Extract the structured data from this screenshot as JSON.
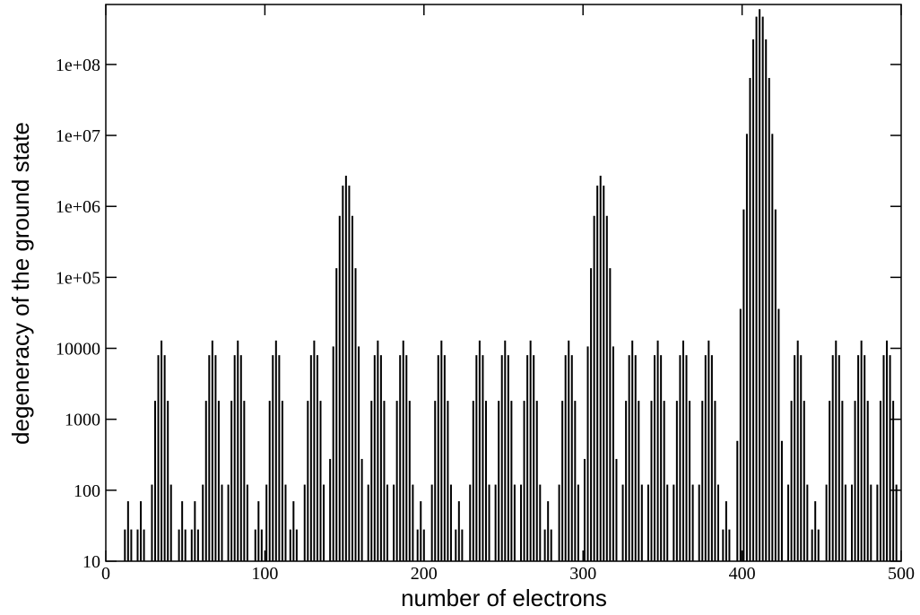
{
  "chart_data": {
    "type": "bar",
    "x_label": "number of electrons",
    "y_label": "degeneracy of the ground state",
    "color": "#000000",
    "log_y": true,
    "grid": false,
    "xlim": [
      0,
      500
    ],
    "xticks": [
      0,
      100,
      200,
      300,
      400,
      500
    ],
    "ylim": [
      10,
      700000000
    ],
    "yticks": [
      10,
      100,
      1000,
      10000,
      {
        "value": 100000,
        "label": "1e+05"
      },
      {
        "value": 1000000,
        "label": "1e+06"
      },
      {
        "value": 10000000,
        "label": "1e+07"
      },
      {
        "value": 100000000,
        "label": "1e+08"
      }
    ],
    "x": [
      12,
      14,
      16,
      20,
      22,
      24,
      29,
      31,
      33,
      35,
      37,
      39,
      41,
      46,
      48,
      50,
      54,
      56,
      58,
      61,
      63,
      65,
      67,
      69,
      71,
      73,
      77,
      79,
      81,
      83,
      85,
      87,
      89,
      94,
      96,
      98,
      101,
      103,
      105,
      107,
      109,
      111,
      113,
      116,
      118,
      120,
      125,
      127,
      129,
      131,
      133,
      135,
      137,
      141,
      143,
      145,
      147,
      149,
      151,
      153,
      155,
      157,
      159,
      161,
      165,
      167,
      169,
      171,
      173,
      175,
      177,
      181,
      183,
      185,
      187,
      189,
      191,
      193,
      196,
      198,
      200,
      205,
      207,
      209,
      211,
      213,
      215,
      217,
      220,
      222,
      224,
      229,
      231,
      233,
      235,
      237,
      239,
      241,
      245,
      247,
      249,
      251,
      253,
      255,
      257,
      261,
      263,
      265,
      267,
      269,
      271,
      273,
      276,
      278,
      280,
      285,
      287,
      289,
      291,
      293,
      295,
      297,
      301,
      303,
      305,
      307,
      309,
      311,
      313,
      315,
      317,
      319,
      321,
      325,
      327,
      329,
      331,
      333,
      335,
      337,
      341,
      343,
      345,
      347,
      349,
      351,
      353,
      357,
      359,
      361,
      363,
      365,
      367,
      369,
      373,
      375,
      377,
      379,
      381,
      383,
      385,
      388,
      390,
      392,
      397,
      399,
      401,
      403,
      405,
      407,
      409,
      411,
      413,
      415,
      417,
      419,
      421,
      423,
      425,
      429,
      431,
      433,
      435,
      437,
      439,
      441,
      444,
      446,
      448,
      453,
      455,
      457,
      459,
      461,
      463,
      465,
      469,
      471,
      473,
      475,
      477,
      479,
      481,
      485,
      487,
      489,
      491,
      493,
      495,
      497
    ],
    "values": [
      28,
      70,
      28,
      28,
      70,
      28,
      120,
      1820,
      8008,
      12870,
      8008,
      1820,
      120,
      28,
      70,
      28,
      28,
      70,
      28,
      120,
      1820,
      8008,
      12870,
      8008,
      1820,
      120,
      120,
      1820,
      8008,
      12870,
      8008,
      1820,
      120,
      28,
      70,
      28,
      120,
      1820,
      8008,
      12870,
      8008,
      1820,
      120,
      28,
      70,
      28,
      120,
      1820,
      8008,
      12870,
      8008,
      1820,
      120,
      276,
      10626,
      134596,
      735471,
      1961256,
      2704156,
      1961256,
      735471,
      134596,
      10626,
      276,
      120,
      1820,
      8008,
      12870,
      8008,
      1820,
      120,
      120,
      1820,
      8008,
      12870,
      8008,
      1820,
      120,
      28,
      70,
      28,
      120,
      1820,
      8008,
      12870,
      8008,
      1820,
      120,
      28,
      70,
      28,
      120,
      1820,
      8008,
      12870,
      8008,
      1820,
      120,
      120,
      1820,
      8008,
      12870,
      8008,
      1820,
      120,
      120,
      1820,
      8008,
      12870,
      8008,
      1820,
      120,
      28,
      70,
      28,
      120,
      1820,
      8008,
      12870,
      8008,
      1820,
      120,
      276,
      10626,
      134596,
      735471,
      1961256,
      2704156,
      1961256,
      735471,
      134596,
      10626,
      276,
      120,
      1820,
      8008,
      12870,
      8008,
      1820,
      120,
      120,
      1820,
      8008,
      12870,
      8008,
      1820,
      120,
      120,
      1820,
      8008,
      12870,
      8008,
      1820,
      120,
      120,
      1820,
      8008,
      12870,
      8008,
      1820,
      120,
      28,
      70,
      28,
      496,
      35960,
      906192,
      10518300,
      64512240,
      225792840,
      471435600,
      601080390,
      471435600,
      225792840,
      64512240,
      10518300,
      906192,
      35960,
      496,
      120,
      1820,
      8008,
      12870,
      8008,
      1820,
      120,
      28,
      70,
      28,
      120,
      1820,
      8008,
      12870,
      8008,
      1820,
      120,
      120,
      1820,
      8008,
      12870,
      8008,
      1820,
      120,
      120,
      1820,
      8008,
      12870,
      8008,
      1820,
      120
    ]
  }
}
